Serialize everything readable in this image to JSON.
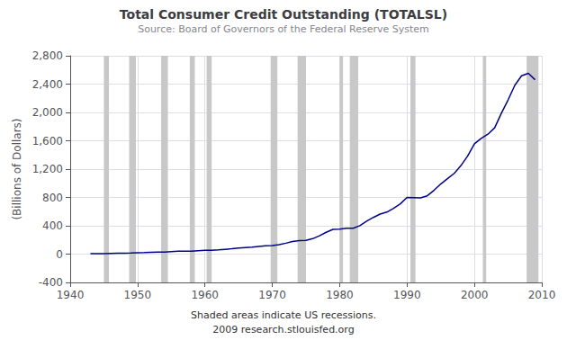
{
  "chart_data": {
    "type": "line",
    "title": "Total Consumer Credit Outstanding (TOTALSL)",
    "subtitle": "Source: Board of Governors of the Federal Reserve System",
    "ylabel": "(Billions of Dollars)",
    "annotations": [
      "Shaded areas indicate US recessions.",
      "2009 research.stlouisfed.org"
    ],
    "x": [
      1943,
      1944,
      1945,
      1946,
      1947,
      1948,
      1949,
      1950,
      1951,
      1952,
      1953,
      1954,
      1955,
      1956,
      1957,
      1958,
      1959,
      1960,
      1961,
      1962,
      1963,
      1964,
      1965,
      1966,
      1967,
      1968,
      1969,
      1970,
      1971,
      1972,
      1973,
      1974,
      1975,
      1976,
      1977,
      1978,
      1979,
      1980,
      1981,
      1982,
      1983,
      1984,
      1985,
      1986,
      1987,
      1988,
      1989,
      1990,
      1991,
      1992,
      1993,
      1994,
      1995,
      1996,
      1997,
      1998,
      1999,
      2000,
      2001,
      2002,
      2003,
      2004,
      2005,
      2006,
      2007,
      2008,
      2009
    ],
    "values": [
      6,
      7,
      6,
      9,
      12,
      14,
      15,
      19,
      22,
      26,
      30,
      30,
      36,
      40,
      42,
      41,
      49,
      53,
      54,
      60,
      68,
      76,
      86,
      92,
      97,
      108,
      117,
      120,
      132,
      154,
      179,
      190,
      193,
      218,
      259,
      308,
      349,
      351,
      365,
      365,
      402,
      465,
      518,
      565,
      593,
      647,
      709,
      800,
      797,
      793,
      823,
      901,
      990,
      1064,
      1140,
      1250,
      1385,
      1558,
      1634,
      1693,
      1782,
      1989,
      2177,
      2384,
      2517,
      2552,
      2462
    ],
    "color": "#00008b",
    "xlim": [
      1940,
      2010
    ],
    "xticks": [
      1940,
      1950,
      1960,
      1970,
      1980,
      1990,
      2000,
      2010
    ],
    "ylim": [
      -400,
      2800
    ],
    "yticks": [
      -400,
      0,
      400,
      800,
      {
        "value": 1200,
        "label": "1,200"
      },
      {
        "value": 1600,
        "label": "1,600"
      },
      {
        "value": 2000,
        "label": "2,000"
      },
      {
        "value": 2400,
        "label": "2,400"
      },
      {
        "value": 2800,
        "label": "2,800"
      }
    ],
    "shaded_areas": {
      "color": "#c8c8c8",
      "ranges": [
        [
          1945.0,
          1945.75
        ],
        [
          1948.75,
          1949.75
        ],
        [
          1953.5,
          1954.5
        ],
        [
          1957.75,
          1958.5
        ],
        [
          1960.25,
          1961.0
        ],
        [
          1969.75,
          1970.75
        ],
        [
          1973.75,
          1975.0
        ],
        [
          1980.0,
          1980.5
        ],
        [
          1981.5,
          1982.75
        ],
        [
          1990.5,
          1991.25
        ],
        [
          2001.25,
          2001.75
        ],
        [
          2007.75,
          2009.5
        ]
      ]
    },
    "grid": true
  }
}
